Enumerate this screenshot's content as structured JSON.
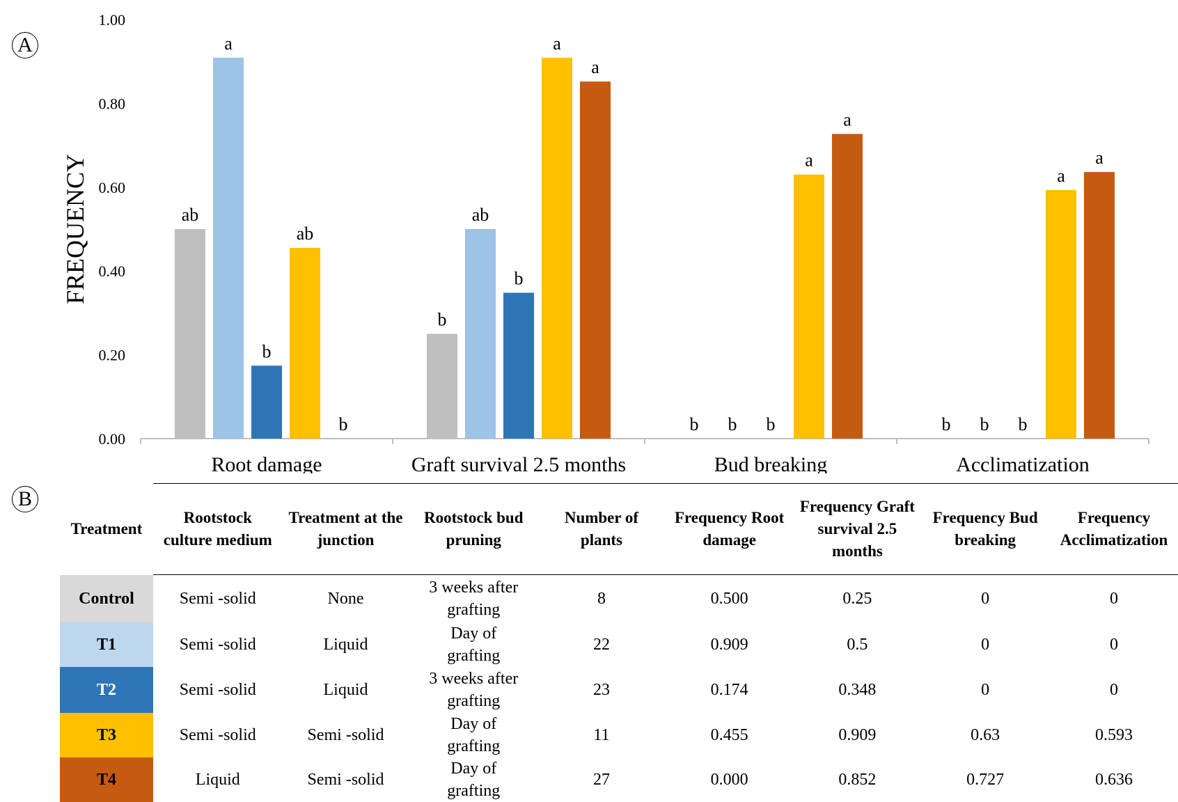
{
  "panels": {
    "a": "A",
    "b": "B"
  },
  "chart_data": {
    "type": "bar",
    "ylabel": "FREQUENCY",
    "xlabel": "",
    "ylim": [
      0,
      1.0
    ],
    "yticks": [
      "0.00",
      "0.20",
      "0.40",
      "0.60",
      "0.80",
      "1.00"
    ],
    "grid": false,
    "legend": "none",
    "categories": [
      "Root damage",
      "Graft survival 2.5 months",
      "Bud breaking",
      "Acclimatization"
    ],
    "series": [
      {
        "name": "Control",
        "color": "#bfbfbf",
        "values": [
          0.5,
          0.25,
          0,
          0
        ],
        "letters": [
          "ab",
          "b",
          "b",
          "b"
        ]
      },
      {
        "name": "T1",
        "color": "#9dc3e6",
        "values": [
          0.909,
          0.5,
          0,
          0
        ],
        "letters": [
          "a",
          "ab",
          "b",
          "b"
        ]
      },
      {
        "name": "T2",
        "color": "#2e75b6",
        "values": [
          0.174,
          0.348,
          0,
          0
        ],
        "letters": [
          "b",
          "b",
          "b",
          "b"
        ]
      },
      {
        "name": "T3",
        "color": "#ffc000",
        "values": [
          0.455,
          0.909,
          0.63,
          0.593
        ],
        "letters": [
          "ab",
          "a",
          "a",
          "a"
        ]
      },
      {
        "name": "T4",
        "color": "#c55a11",
        "values": [
          0.0,
          0.852,
          0.727,
          0.636
        ],
        "letters": [
          "b",
          "a",
          "a",
          "a"
        ]
      }
    ]
  },
  "table": {
    "headers": [
      "Treatment",
      "Rootstock culture medium",
      "Treatment at the junction",
      "Rootstock bud pruning",
      "Number of plants",
      "Frequency Root damage",
      "Frequency Graft survival 2.5 months",
      "Frequency Bud breaking",
      "Frequency Acclimatization"
    ],
    "rows": [
      {
        "treatment": "Control",
        "bg": "#d9d9d9",
        "fg": "#000000",
        "medium": "Semi -solid",
        "junction": "None",
        "pruning": "3 weeks after grafting",
        "plants": "8",
        "root": "0.500",
        "graft": "0.25",
        "bud": "0",
        "accl": "0"
      },
      {
        "treatment": "T1",
        "bg": "#bdd7ee",
        "fg": "#000000",
        "medium": "Semi -solid",
        "junction": "Liquid",
        "pruning": "Day of grafting",
        "plants": "22",
        "root": "0.909",
        "graft": "0.5",
        "bud": "0",
        "accl": "0"
      },
      {
        "treatment": "T2",
        "bg": "#2e75b6",
        "fg": "#ffffff",
        "medium": "Semi -solid",
        "junction": "Liquid",
        "pruning": "3 weeks after grafting",
        "plants": "23",
        "root": "0.174",
        "graft": "0.348",
        "bud": "0",
        "accl": "0"
      },
      {
        "treatment": "T3",
        "bg": "#ffc000",
        "fg": "#000000",
        "medium": "Semi -solid",
        "junction": "Semi -solid",
        "pruning": "Day of grafting",
        "plants": "11",
        "root": "0.455",
        "graft": "0.909",
        "bud": "0.63",
        "accl": "0.593"
      },
      {
        "treatment": "T4",
        "bg": "#c55a11",
        "fg": "#000000",
        "medium": "Liquid",
        "junction": "Semi -solid",
        "pruning": "Day of grafting",
        "plants": "27",
        "root": "0.000",
        "graft": "0.852",
        "bud": "0.727",
        "accl": "0.636"
      }
    ]
  }
}
